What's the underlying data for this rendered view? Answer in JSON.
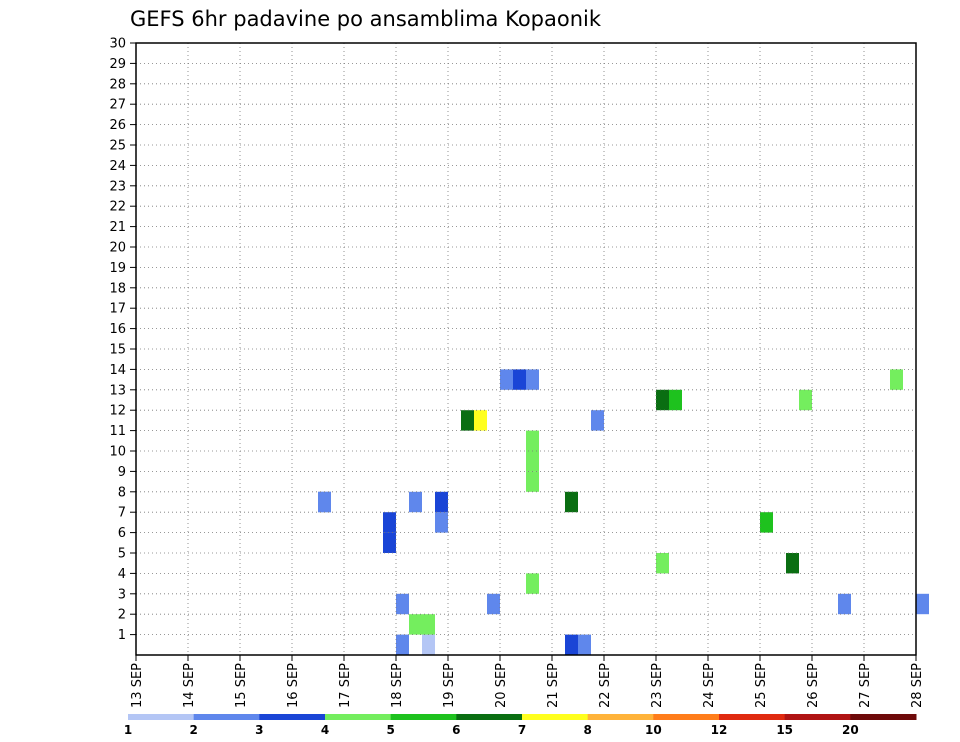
{
  "chart_data": {
    "type": "heatmap",
    "title": "GEFS 6hr padavine po ansamblima Kopaonik",
    "xlabel": "",
    "ylabel": "",
    "x_ticks": [
      "13 SEP",
      "14 SEP",
      "15 SEP",
      "16 SEP",
      "17 SEP",
      "18 SEP",
      "19 SEP",
      "20 SEP",
      "21 SEP",
      "22 SEP",
      "23 SEP",
      "24 SEP",
      "25 SEP",
      "26 SEP",
      "27 SEP",
      "28 SEP"
    ],
    "x_unit": "6-hour step from 13 SEP 00Z (4 steps per day)",
    "xlim": [
      0,
      60
    ],
    "y_ticks": [
      "1",
      "2",
      "3",
      "4",
      "5",
      "6",
      "7",
      "8",
      "9",
      "10",
      "11",
      "12",
      "13",
      "14",
      "15",
      "16",
      "17",
      "18",
      "19",
      "20",
      "21",
      "22",
      "23",
      "24",
      "25",
      "26",
      "27",
      "28",
      "29",
      "30"
    ],
    "ylim": [
      0,
      30
    ],
    "grid": true,
    "legend": "bottom",
    "color_scale": {
      "bin_labels": [
        "1",
        "2",
        "3",
        "4",
        "5",
        "6",
        "7",
        "8",
        "10",
        "12",
        "15",
        "20"
      ],
      "colors": [
        "#b4c6f5",
        "#5f87ec",
        "#1a45d6",
        "#74ee5e",
        "#1ec21e",
        "#0a6e12",
        "#ffff1e",
        "#ffb33a",
        "#ff7d1a",
        "#e02a10",
        "#b01414",
        "#6e0a0a"
      ]
    },
    "cells": [
      [
        34,
        1,
        1
      ],
      [
        33,
        1,
        2
      ],
      [
        20,
        1,
        1
      ],
      [
        22,
        1,
        0
      ],
      [
        21,
        2,
        3
      ],
      [
        22,
        2,
        3
      ],
      [
        27,
        3,
        1
      ],
      [
        54,
        3,
        1
      ],
      [
        60,
        3,
        1
      ],
      [
        20,
        3,
        1
      ],
      [
        30,
        4,
        3
      ],
      [
        40,
        5,
        3
      ],
      [
        50,
        5,
        5
      ],
      [
        19,
        6,
        2
      ],
      [
        19,
        7,
        2
      ],
      [
        23,
        7,
        1
      ],
      [
        48,
        7,
        4
      ],
      [
        14,
        8,
        1
      ],
      [
        21,
        8,
        1
      ],
      [
        23,
        8,
        2
      ],
      [
        33,
        8,
        5
      ],
      [
        14,
        8,
        1
      ],
      [
        30,
        9,
        3
      ],
      [
        30,
        10,
        3
      ],
      [
        30,
        11,
        3
      ],
      [
        25,
        12,
        5
      ],
      [
        26,
        12,
        6
      ],
      [
        35,
        12,
        1
      ],
      [
        40,
        13,
        5
      ],
      [
        41,
        13,
        4
      ],
      [
        51,
        13,
        3
      ],
      [
        58,
        14,
        3
      ],
      [
        28,
        14,
        1
      ],
      [
        29,
        14,
        2
      ],
      [
        30,
        14,
        1
      ]
    ]
  }
}
